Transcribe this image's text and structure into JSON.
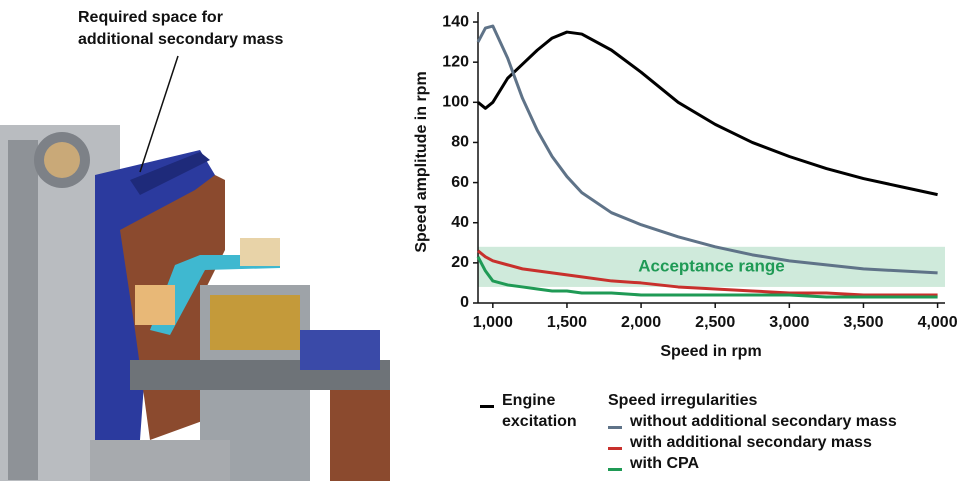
{
  "annotation": [
    "Required space for",
    "additional secondary mass"
  ],
  "chart_data": {
    "type": "line",
    "ylabel": "Speed amplitude in rpm",
    "xlabel": "Speed in rpm",
    "x": [
      900,
      950,
      1000,
      1100,
      1200,
      1300,
      1400,
      1500,
      1600,
      1800,
      2000,
      2250,
      2500,
      2750,
      3000,
      3250,
      3500,
      3750,
      4000
    ],
    "series": [
      {
        "name": "Engine excitation",
        "color": "#000000",
        "values": [
          100,
          97,
          100,
          112,
          119,
          126,
          132,
          135,
          134,
          126,
          115,
          100,
          89,
          80,
          73,
          67,
          62,
          58,
          54
        ]
      },
      {
        "name": "without additional secondary mass",
        "color": "#5f7388",
        "values": [
          130,
          137,
          138,
          122,
          102,
          86,
          73,
          63,
          55,
          45,
          39,
          33,
          28,
          24,
          21,
          19,
          17,
          16,
          15
        ]
      },
      {
        "name": "with additional secondary mass",
        "color": "#c8302c",
        "values": [
          26,
          23,
          21,
          19,
          17,
          16,
          15,
          14,
          13,
          11,
          10,
          8,
          7,
          6,
          5,
          5,
          4,
          4,
          4
        ]
      },
      {
        "name": "with CPA",
        "color": "#1f9a55",
        "values": [
          23,
          16,
          11,
          9,
          8,
          7,
          6,
          6,
          5,
          5,
          4,
          4,
          4,
          4,
          4,
          3,
          3,
          3,
          3
        ]
      }
    ],
    "legend_group_title": "Speed irregularities",
    "acceptance_range": [
      8,
      28
    ],
    "acceptance_label": "Acceptance range",
    "acceptance_color": "#cfeadb",
    "acceptance_label_color": "#1f9a55",
    "xlim": [
      900,
      4050
    ],
    "ylim": [
      0,
      145
    ],
    "xticks": [
      {
        "value": 1000,
        "label": "1,000"
      },
      {
        "value": 1500,
        "label": "1,500"
      },
      {
        "value": 2000,
        "label": "2,000"
      },
      {
        "value": 2500,
        "label": "2,500"
      },
      {
        "value": 3000,
        "label": "3,000"
      },
      {
        "value": 3500,
        "label": "3,500"
      },
      {
        "value": 4000,
        "label": "4,000"
      }
    ],
    "yticks": [
      0,
      20,
      40,
      60,
      80,
      100,
      120,
      140
    ]
  }
}
